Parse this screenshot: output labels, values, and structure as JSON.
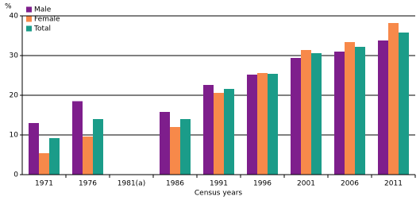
{
  "chart_data": {
    "type": "bar",
    "y_label": "%",
    "x_label": "Census years",
    "categories": [
      "1971",
      "1976",
      "1981(a)",
      "1986",
      "1991",
      "1996",
      "2001",
      "2006",
      "2011"
    ],
    "series": [
      {
        "name": "Male",
        "color": "#7e1e8c",
        "values": [
          13,
          18.5,
          null,
          15.8,
          22.6,
          25.2,
          29.4,
          31,
          33.8
        ]
      },
      {
        "name": "Female",
        "color": "#f7894a",
        "values": [
          5.4,
          9.6,
          null,
          12,
          20.6,
          25.6,
          31.4,
          33.4,
          38.2
        ]
      },
      {
        "name": "Total",
        "color": "#1b9c89",
        "values": [
          9.2,
          14,
          null,
          14,
          21.6,
          25.4,
          30.6,
          32.2,
          35.8
        ]
      }
    ],
    "ylim": [
      0,
      40
    ],
    "yticks": [
      0,
      10,
      20,
      30,
      40
    ],
    "grid": true,
    "legend": "top-left"
  }
}
